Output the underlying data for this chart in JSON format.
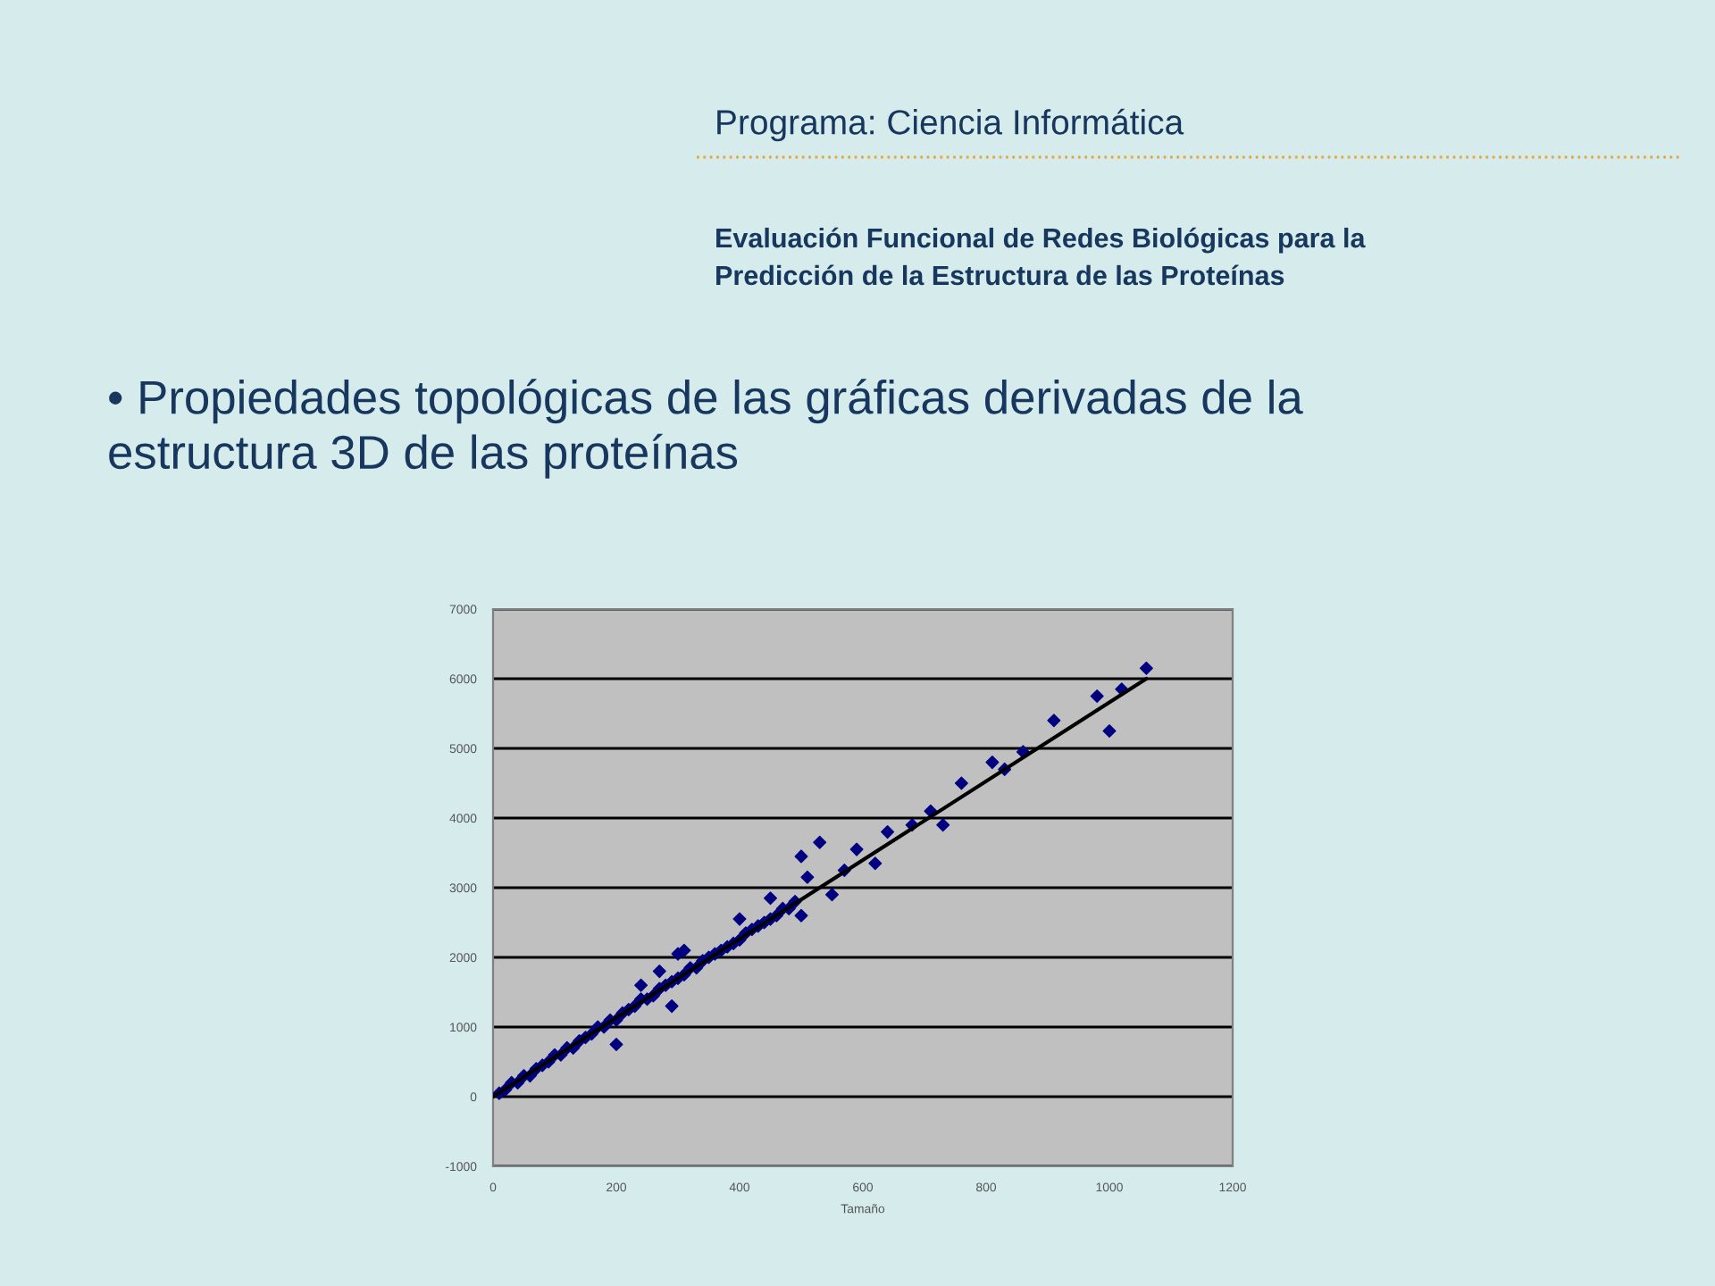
{
  "chart_data": {
    "type": "scatter",
    "title": "Programa: Ciencia Informática",
    "subtitle": "Evaluación Funcional de Redes Biológicas para la\nPredicción de la Estructura de las Proteínas",
    "annotations": [
      "• Propiedades topológicas de las gráficas derivadas de la\nestructura 3D de las proteínas"
    ],
    "xlabel": "Tamaño",
    "series": [
      {
        "color": "#000080",
        "marker": "diamond",
        "x": [
          10,
          20,
          30,
          40,
          50,
          60,
          70,
          80,
          90,
          100,
          110,
          120,
          130,
          140,
          150,
          160,
          170,
          180,
          190,
          200,
          210,
          220,
          230,
          240,
          250,
          260,
          270,
          280,
          290,
          300,
          310,
          320,
          330,
          340,
          350,
          360,
          370,
          380,
          390,
          400,
          410,
          420,
          430,
          440,
          450,
          460,
          470,
          480,
          490,
          200,
          240,
          270,
          290,
          300,
          310,
          400,
          450,
          500,
          500,
          510,
          530,
          550,
          570,
          590,
          620,
          640,
          680,
          710,
          730,
          760,
          810,
          830,
          860,
          910,
          980,
          1000,
          1020,
          1060
        ],
        "values": [
          50,
          100,
          200,
          200,
          300,
          300,
          400,
          450,
          500,
          600,
          600,
          700,
          700,
          800,
          850,
          900,
          1000,
          1000,
          1100,
          1100,
          1200,
          1250,
          1300,
          1400,
          1400,
          1450,
          1550,
          1600,
          1650,
          1700,
          1750,
          1850,
          1850,
          1950,
          2000,
          2050,
          2100,
          2150,
          2200,
          2250,
          2350,
          2400,
          2450,
          2500,
          2550,
          2600,
          2700,
          2700,
          2800,
          750,
          1600,
          1800,
          1300,
          2050,
          2100,
          2550,
          2850,
          3450,
          2600,
          3150,
          3650,
          2900,
          3250,
          3550,
          3350,
          3800,
          3900,
          4100,
          3900,
          4500,
          4800,
          4700,
          4950,
          5400,
          5750,
          5250,
          5850,
          6150
        ]
      },
      {
        "type": "line",
        "color": "#000000",
        "marker": "none",
        "x": [
          0,
          1060
        ],
        "values": [
          0,
          6000
        ]
      }
    ],
    "xlim": [
      0,
      1200
    ],
    "xticks": [
      0,
      200,
      400,
      600,
      800,
      1000,
      1200
    ],
    "ylim": [
      -1000,
      7000
    ],
    "yticks": [
      -1000,
      0,
      1000,
      2000,
      3000,
      4000,
      5000,
      6000,
      7000
    ],
    "grid": "y",
    "legend": false
  }
}
